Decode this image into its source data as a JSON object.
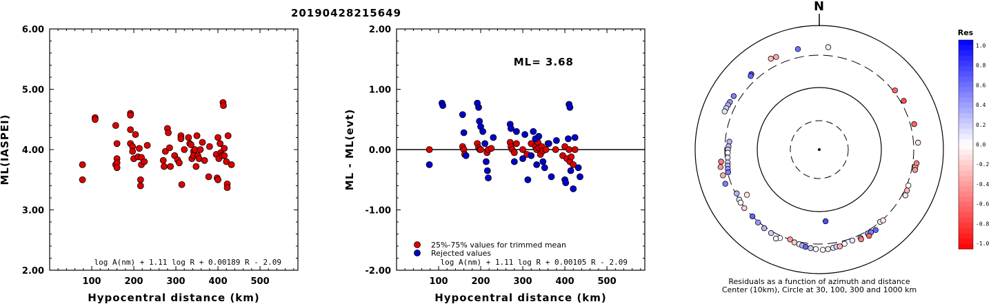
{
  "event_id": "20190428215649",
  "chart_data": [
    {
      "type": "scatter",
      "xlabel": "Hypocentral distance (km)",
      "ylabel": "ML(IASPEI)",
      "xlim": [
        0,
        590
      ],
      "ylim": [
        2.0,
        6.0
      ],
      "xticks": [
        "100",
        "200",
        "300",
        "400",
        "500"
      ],
      "yticks": [
        "2.00",
        "3.00",
        "4.00",
        "5.00",
        "6.00"
      ],
      "formula": "log A(nm) + 1.11 log R + 0.00189 R - 2.09",
      "colors": {
        "point": "#dd0000"
      },
      "x": [
        78,
        78,
        108,
        108,
        157,
        157,
        160,
        160,
        160,
        160,
        192,
        192,
        192,
        192,
        197,
        197,
        200,
        200,
        204,
        210,
        213,
        216,
        216,
        218,
        218,
        225,
        232,
        270,
        272,
        275,
        280,
        282,
        285,
        287,
        297,
        304,
        308,
        312,
        312,
        314,
        320,
        330,
        333,
        336,
        338,
        342,
        342,
        345,
        348,
        350,
        352,
        355,
        358,
        363,
        368,
        378,
        380,
        396,
        398,
        400,
        400,
        402,
        405,
        407,
        410,
        412,
        413,
        415,
        415,
        420,
        422,
        422,
        424,
        432
      ],
      "y": [
        3.75,
        3.5,
        4.53,
        4.5,
        4.4,
        3.75,
        4.1,
        3.85,
        3.78,
        3.7,
        4.6,
        4.57,
        4.33,
        4.1,
        4.05,
        3.97,
        3.85,
        3.85,
        4.25,
        3.88,
        4.02,
        3.5,
        3.4,
        3.87,
        3.75,
        3.8,
        4.07,
        3.82,
        3.72,
        3.97,
        4.35,
        4.28,
        4.03,
        3.72,
        3.9,
        3.83,
        3.78,
        4.23,
        4.18,
        3.42,
        4.0,
        4.2,
        4.1,
        4.08,
        3.85,
        3.97,
        3.9,
        4.0,
        3.72,
        4.23,
        3.9,
        3.85,
        4.0,
        4.12,
        3.82,
        3.55,
        4.05,
        3.92,
        3.53,
        3.5,
        4.2,
        3.85,
        4.1,
        3.95,
        3.9,
        4.78,
        4.73,
        4.02,
        3.9,
        3.8,
        3.43,
        3.37,
        4.23,
        3.75
      ]
    },
    {
      "type": "scatter",
      "xlabel": "Hypocentral distance (km)",
      "ylabel": "ML - ML(evt)",
      "xlim": [
        0,
        590
      ],
      "ylim": [
        -2.0,
        2.0
      ],
      "xticks": [
        "100",
        "200",
        "300",
        "400",
        "500"
      ],
      "yticks": [
        "-2.00",
        "-1.00",
        "0.00",
        "1.00",
        "2.00"
      ],
      "annotation": "ML= 3.68",
      "formula": "log A(nm) + 1.11 log R + 0.00105 R - 2.09",
      "legend": [
        "25%-75% values for trimmed mean",
        "Rejected values"
      ],
      "colors": {
        "trimmed": "#dd0000",
        "rejected": "#0000cc"
      },
      "series": [
        {
          "name": "25%-75% values for trimmed mean",
          "x": [
            78,
            157,
            160,
            162,
            192,
            195,
            198,
            200,
            215,
            218,
            225,
            270,
            272,
            275,
            280,
            285,
            300,
            310,
            320,
            330,
            333,
            336,
            338,
            342,
            345,
            348,
            355,
            360,
            378,
            395,
            400,
            405,
            410,
            412,
            415,
            420,
            424
          ],
          "y": [
            0.0,
            0.05,
            0.0,
            -0.08,
            0.1,
            0.03,
            0.0,
            0.0,
            -0.05,
            0.0,
            0.02,
            0.12,
            0.05,
            0.0,
            -0.05,
            0.1,
            0.0,
            -0.08,
            0.1,
            0.05,
            0.0,
            0.12,
            0.03,
            -0.08,
            0.05,
            -0.02,
            0.0,
            0.1,
            0.0,
            -0.1,
            0.05,
            -0.15,
            0.0,
            -0.2,
            -0.12,
            -0.25,
            0.0
          ]
        },
        {
          "name": "Rejected values",
          "x": [
            78,
            108,
            110,
            157,
            160,
            165,
            192,
            195,
            197,
            200,
            205,
            210,
            213,
            216,
            218,
            230,
            270,
            272,
            280,
            285,
            300,
            305,
            312,
            320,
            325,
            330,
            333,
            338,
            348,
            352,
            362,
            368,
            380,
            400,
            402,
            408,
            410,
            412,
            414,
            420,
            424,
            432,
            436
          ],
          "y": [
            -0.25,
            0.77,
            0.73,
            0.58,
            0.28,
            -0.1,
            0.77,
            0.7,
            0.47,
            0.38,
            0.3,
            0.1,
            -0.2,
            -0.35,
            -0.47,
            0.2,
            0.42,
            0.35,
            -0.2,
            0.3,
            -0.15,
            0.25,
            -0.5,
            -0.1,
            0.3,
            0.18,
            -0.25,
            0.22,
            -0.2,
            -0.3,
            0.1,
            -0.45,
            0.15,
            -0.5,
            -0.55,
            0.18,
            0.75,
            0.7,
            -0.35,
            -0.65,
            0.2,
            -0.3,
            -0.45
          ]
        }
      ]
    },
    {
      "type": "polar-scatter",
      "north_label": "N",
      "caption_lines": [
        "Residuals as a function of azimuth and distance",
        "Center (10km), Circle at 30, 100, 300 and 1000 km"
      ],
      "colorbar": {
        "title": "Res",
        "ticks": [
          "1.0",
          "0.8",
          "0.6",
          "0.4",
          "0.2",
          "0.0",
          "-0.2",
          "-0.4",
          "-0.6",
          "-0.8",
          "-1.0"
        ],
        "range": [
          -1.0,
          1.0
        ]
      },
      "points_az_dist_res": [
        [
          5,
          420,
          -0.05
        ],
        [
          -12,
          420,
          0.55
        ],
        [
          -25,
          410,
          -0.35
        ],
        [
          -28,
          425,
          -0.25
        ],
        [
          -42,
          400,
          0.7
        ],
        [
          -43,
          385,
          0.6
        ],
        [
          -58,
          390,
          0.5
        ],
        [
          -62,
          395,
          0.4
        ],
        [
          -64,
          400,
          0.3
        ],
        [
          -66,
          405,
          0.2
        ],
        [
          -68,
          408,
          0.1
        ],
        [
          -85,
          260,
          0.3
        ],
        [
          -88,
          265,
          0.25
        ],
        [
          -90,
          270,
          0.15
        ],
        [
          -92,
          272,
          0.0
        ],
        [
          -95,
          275,
          0.1
        ],
        [
          -98,
          280,
          0.2
        ],
        [
          -100,
          285,
          0.3
        ],
        [
          -102,
          290,
          0.4
        ],
        [
          -104,
          295,
          0.5
        ],
        [
          -97,
          360,
          -0.5
        ],
        [
          -100,
          380,
          -0.4
        ],
        [
          -105,
          370,
          -0.3
        ],
        [
          -110,
          375,
          0.5
        ],
        [
          -118,
          290,
          0.3
        ],
        [
          -122,
          300,
          0.1
        ],
        [
          -124,
          305,
          0.0
        ],
        [
          -128,
          308,
          -0.2
        ],
        [
          -122,
          220,
          -0.1
        ],
        [
          -135,
          300,
          0.6
        ],
        [
          -140,
          310,
          0.4
        ],
        [
          -145,
          320,
          0.3
        ],
        [
          -150,
          325,
          0.2
        ],
        [
          -156,
          330,
          0.0
        ],
        [
          -154,
          360,
          0.05
        ],
        [
          -162,
          300,
          -0.4
        ],
        [
          -165,
          320,
          -0.2
        ],
        [
          -168,
          330,
          0.1
        ],
        [
          -170,
          340,
          0.3
        ],
        [
          -172,
          350,
          0.6
        ],
        [
          -175,
          360,
          0.2
        ],
        [
          -178,
          370,
          0.0
        ],
        [
          178,
          380,
          0.0
        ],
        [
          175,
          375,
          -0.1
        ],
        [
          172,
          365,
          0.1
        ],
        [
          170,
          355,
          0.2
        ],
        [
          168,
          360,
          -0.3
        ],
        [
          165,
          340,
          0.0
        ],
        [
          160,
          330,
          0.1
        ],
        [
          155,
          340,
          0.2
        ],
        [
          150,
          330,
          0.4
        ],
        [
          148,
          340,
          0.5
        ],
        [
          145,
          350,
          0.6
        ],
        [
          140,
          300,
          0.1
        ],
        [
          138,
          310,
          -0.1
        ],
        [
          155,
          360,
          -0.5
        ],
        [
          150,
          370,
          -0.6
        ],
        [
          175,
          140,
          0.7
        ],
        [
          112,
          320,
          0.0
        ],
        [
          115,
          330,
          -0.3
        ],
        [
          118,
          340,
          -0.1
        ],
        [
          100,
          340,
          -0.3
        ],
        [
          102,
          345,
          -0.4
        ],
        [
          98,
          350,
          -0.5
        ],
        [
          86,
          360,
          -0.1
        ],
        [
          75,
          350,
          -0.6
        ],
        [
          60,
          340,
          -0.7
        ],
        [
          52,
          320,
          -0.6
        ]
      ]
    }
  ]
}
